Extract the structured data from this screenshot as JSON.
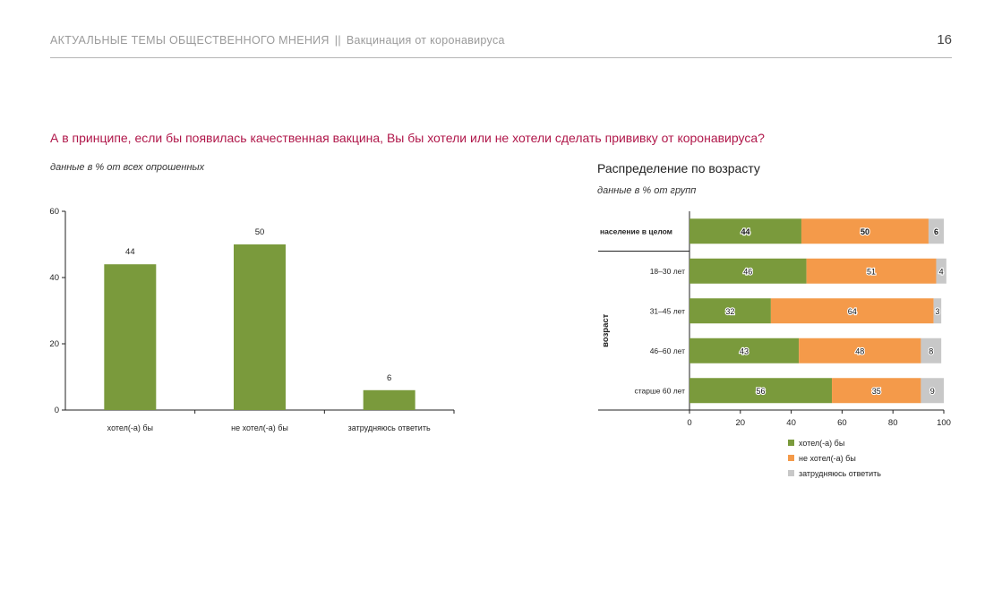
{
  "header": {
    "section": "АКТУАЛЬНЫЕ ТЕМЫ ОБЩЕСТВЕННОГО МНЕНИЯ",
    "separator": "||",
    "topic": "Вакцинация от коронавируса",
    "page": "16"
  },
  "question": "А в принципе, если бы появилась качественная вакцина, Вы бы хотели или не хотели сделать прививку от коронавируса?",
  "left_note": "данные в % от всех опрошенных",
  "right_title": "Распределение по возрасту",
  "right_note": "данные в % от групп",
  "colors": {
    "want": "#7a9a3c",
    "not_want": "#f49a4a",
    "hard": "#c8c8c8",
    "axis": "#222222"
  },
  "chart_data": [
    {
      "type": "bar",
      "categories": [
        "хотел(-а) бы",
        "не хотел(-а) бы",
        "затрудняюсь ответить"
      ],
      "values": [
        44,
        50,
        6
      ],
      "ylim": [
        0,
        60
      ],
      "yticks": [
        0,
        20,
        40,
        60
      ],
      "grid": false
    },
    {
      "type": "bar",
      "orientation": "horizontal",
      "stacked": true,
      "categories": [
        "население в целом",
        "18–30 лет",
        "31–45 лет",
        "46–60 лет",
        "старше 60 лет"
      ],
      "ylabel": "возраст",
      "series": [
        {
          "name": "хотел(-а) бы",
          "values": [
            44,
            46,
            32,
            43,
            56
          ]
        },
        {
          "name": "не хотел(-а) бы",
          "values": [
            50,
            51,
            64,
            48,
            35
          ]
        },
        {
          "name": "затрудняюсь ответить",
          "values": [
            6,
            4,
            3,
            8,
            9
          ]
        }
      ],
      "xlim": [
        0,
        100
      ],
      "xticks": [
        0,
        20,
        40,
        60,
        80,
        100
      ],
      "legend": "bottom",
      "grid": false
    }
  ]
}
